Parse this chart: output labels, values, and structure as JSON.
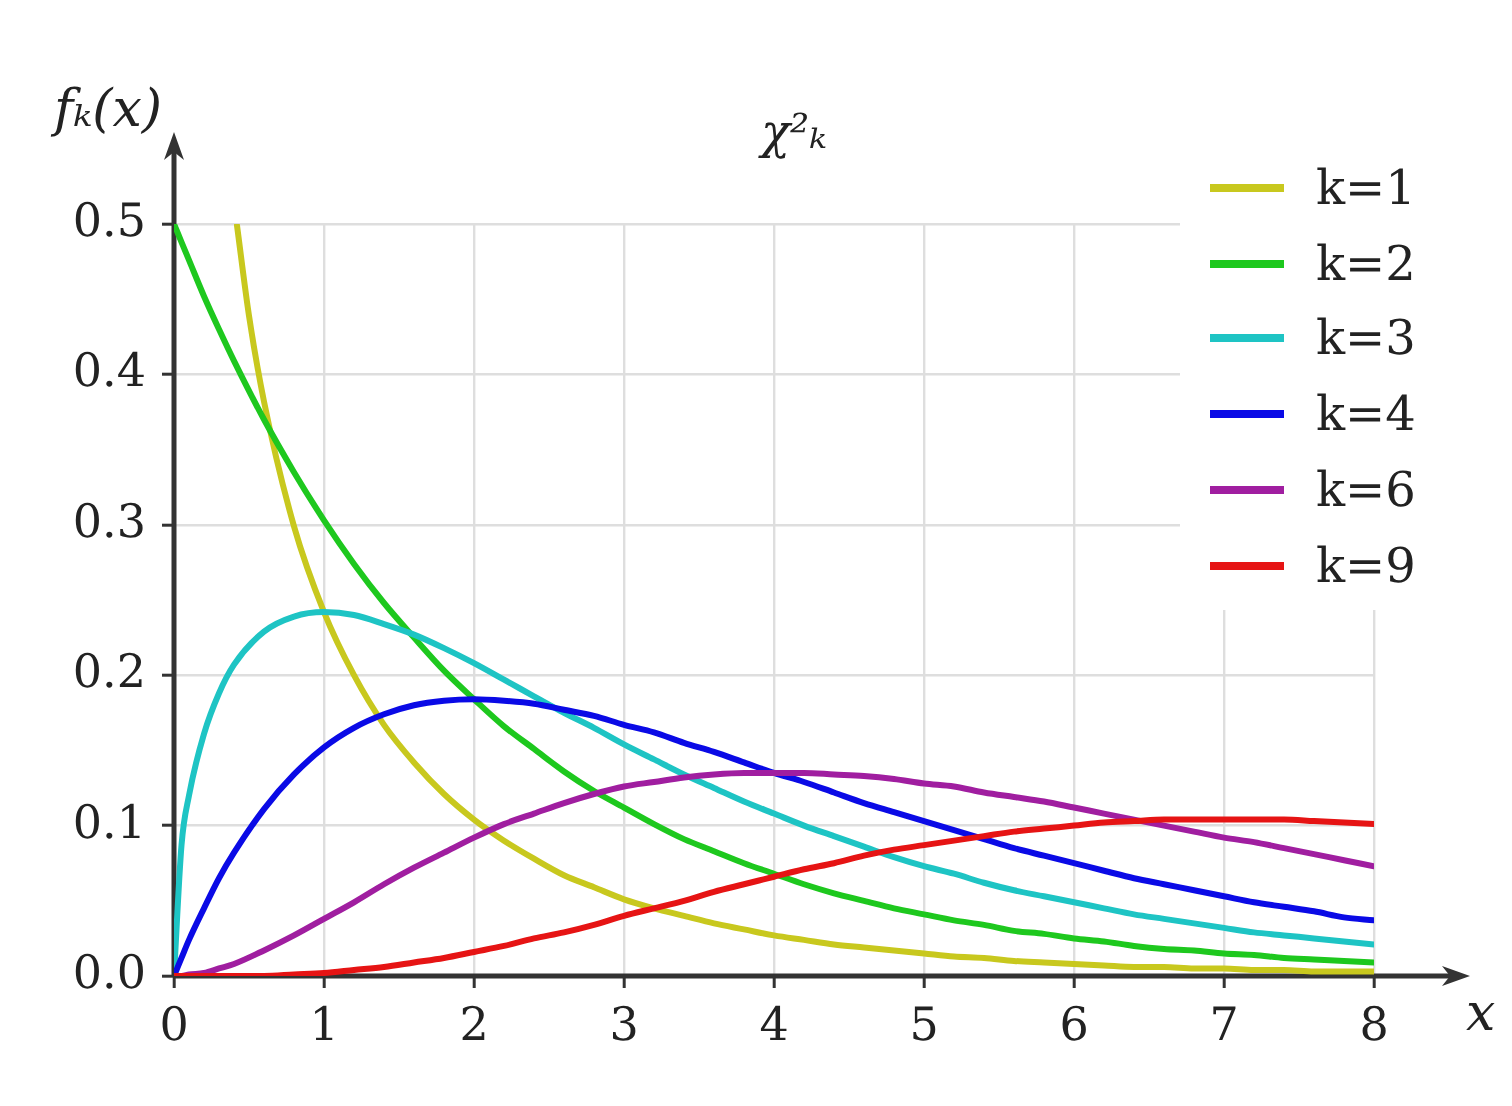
{
  "chart_data": {
    "type": "line",
    "title": "χ²ₖ",
    "xlabel": "x",
    "ylabel": "fₖ(x)",
    "x": [
      0,
      0.05,
      0.1,
      0.2,
      0.3,
      0.4,
      0.6,
      0.8,
      1.0,
      1.2,
      1.4,
      1.6,
      1.8,
      2.0,
      2.2,
      2.4,
      2.6,
      2.8,
      3.0,
      3.2,
      3.4,
      3.6,
      3.8,
      4.0,
      4.2,
      4.4,
      4.6,
      4.8,
      5.0,
      5.2,
      5.4,
      5.6,
      5.8,
      6.0,
      6.2,
      6.4,
      6.6,
      6.8,
      7.0,
      7.2,
      7.4,
      7.6,
      7.8,
      8.0
    ],
    "series": [
      {
        "name": "k=1",
        "color": "#c8c81e",
        "x": [
          0.42,
          0.5,
          0.6,
          0.8,
          1.0,
          1.2,
          1.4,
          1.6,
          1.8,
          2.0,
          2.2,
          2.4,
          2.6,
          2.8,
          3.0,
          3.2,
          3.4,
          3.6,
          3.8,
          4.0,
          4.2,
          4.4,
          4.6,
          4.8,
          5.0,
          5.2,
          5.4,
          5.6,
          5.8,
          6.0,
          6.2,
          6.4,
          6.6,
          6.8,
          7.0,
          7.2,
          7.4,
          7.6,
          7.8,
          8.0
        ],
        "values": [
          0.499,
          0.439,
          0.382,
          0.299,
          0.242,
          0.2,
          0.167,
          0.142,
          0.121,
          0.104,
          0.09,
          0.078,
          0.067,
          0.059,
          0.051,
          0.045,
          0.04,
          0.035,
          0.031,
          0.027,
          0.024,
          0.021,
          0.019,
          0.017,
          0.015,
          0.013,
          0.012,
          0.01,
          0.009,
          0.008,
          0.007,
          0.006,
          0.006,
          0.005,
          0.005,
          0.004,
          0.004,
          0.003,
          0.003,
          0.003
        ]
      },
      {
        "name": "k=2",
        "color": "#1ec81e",
        "values": [
          0.5,
          0.488,
          0.476,
          0.452,
          0.43,
          0.409,
          0.37,
          0.335,
          0.303,
          0.274,
          0.248,
          0.225,
          0.203,
          0.184,
          0.166,
          0.151,
          0.136,
          0.123,
          0.112,
          0.101,
          0.091,
          0.083,
          0.075,
          0.068,
          0.061,
          0.055,
          0.05,
          0.045,
          0.041,
          0.037,
          0.034,
          0.03,
          0.028,
          0.025,
          0.023,
          0.02,
          0.018,
          0.017,
          0.015,
          0.014,
          0.012,
          0.011,
          0.01,
          0.009
        ]
      },
      {
        "name": "k=3",
        "color": "#1ec4c4",
        "values": [
          0,
          0.087,
          0.12,
          0.161,
          0.188,
          0.207,
          0.229,
          0.239,
          0.242,
          0.24,
          0.234,
          0.227,
          0.218,
          0.208,
          0.197,
          0.186,
          0.175,
          0.165,
          0.154,
          0.144,
          0.134,
          0.125,
          0.116,
          0.108,
          0.1,
          0.093,
          0.086,
          0.079,
          0.073,
          0.068,
          0.062,
          0.057,
          0.053,
          0.049,
          0.045,
          0.041,
          0.038,
          0.035,
          0.032,
          0.029,
          0.027,
          0.025,
          0.023,
          0.021
        ]
      },
      {
        "name": "k=4",
        "color": "#0a0ae6",
        "values": [
          0,
          0.012,
          0.024,
          0.045,
          0.065,
          0.082,
          0.111,
          0.134,
          0.152,
          0.165,
          0.174,
          0.18,
          0.183,
          0.184,
          0.183,
          0.181,
          0.177,
          0.173,
          0.167,
          0.162,
          0.155,
          0.149,
          0.142,
          0.135,
          0.129,
          0.122,
          0.115,
          0.109,
          0.103,
          0.097,
          0.091,
          0.085,
          0.08,
          0.075,
          0.07,
          0.065,
          0.061,
          0.057,
          0.053,
          0.049,
          0.046,
          0.043,
          0.039,
          0.037
        ]
      },
      {
        "name": "k=6",
        "color": "#a01ea0",
        "values": [
          0,
          0.0,
          0.001,
          0.002,
          0.005,
          0.008,
          0.017,
          0.027,
          0.038,
          0.049,
          0.061,
          0.072,
          0.082,
          0.092,
          0.101,
          0.108,
          0.115,
          0.121,
          0.126,
          0.129,
          0.132,
          0.134,
          0.135,
          0.135,
          0.135,
          0.134,
          0.133,
          0.131,
          0.128,
          0.126,
          0.122,
          0.119,
          0.116,
          0.112,
          0.108,
          0.104,
          0.1,
          0.096,
          0.092,
          0.089,
          0.085,
          0.081,
          0.077,
          0.073
        ]
      },
      {
        "name": "k=9",
        "color": "#e61414",
        "values": [
          0,
          0.0,
          0.0,
          0.0,
          0.0,
          0.0,
          0.0,
          0.001,
          0.002,
          0.004,
          0.006,
          0.009,
          0.012,
          0.016,
          0.02,
          0.025,
          0.029,
          0.034,
          0.04,
          0.045,
          0.05,
          0.056,
          0.061,
          0.066,
          0.071,
          0.075,
          0.08,
          0.084,
          0.087,
          0.09,
          0.093,
          0.096,
          0.098,
          0.1,
          0.102,
          0.103,
          0.104,
          0.104,
          0.104,
          0.104,
          0.104,
          0.103,
          0.102,
          0.101
        ]
      }
    ],
    "xlim": [
      0,
      8
    ],
    "xticks": [
      0,
      1,
      2,
      3,
      4,
      5,
      6,
      7,
      8
    ],
    "ylim": [
      0,
      0.5
    ],
    "yticks": [
      {
        "value": 0,
        "label": "0.0"
      },
      0.1,
      0.2,
      0.3,
      0.4,
      0.5
    ],
    "grid": true,
    "legend": "top right"
  }
}
